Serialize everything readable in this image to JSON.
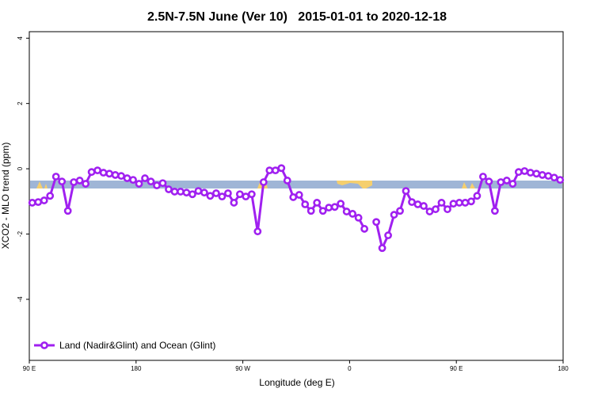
{
  "chart_data": {
    "type": "line",
    "title": "2.5N-7.5N June (Ver 10)   2015-01-01 to 2020-12-18",
    "x_label": "Longitude (deg E)",
    "y_label": "XCO2 - MLO trend (ppm)",
    "x": [
      92.5,
      97.5,
      102.5,
      107.5,
      112.5,
      117.5,
      122.5,
      127.5,
      132.5,
      137.5,
      142.5,
      147.5,
      152.5,
      157.5,
      162.5,
      167.5,
      172.5,
      177.5,
      182.5,
      187.5,
      192.5,
      197.5,
      202.5,
      207.5,
      212.5,
      217.5,
      222.5,
      227.5,
      232.5,
      237.5,
      242.5,
      247.5,
      252.5,
      257.5,
      262.5,
      267.5,
      272.5,
      277.5,
      282.5,
      287.5,
      292.5,
      297.5,
      302.5,
      307.5,
      312.5,
      317.5,
      322.5,
      327.5,
      332.5,
      337.5,
      342.5,
      347.5,
      352.5,
      357.5,
      362.5,
      367.5,
      372.5,
      377.5,
      382.5,
      387.5,
      392.5,
      397.5,
      402.5,
      407.5,
      412.5,
      417.5,
      422.5,
      427.5,
      432.5,
      437.5,
      442.5,
      447.5,
      452.5,
      457.5,
      462.5,
      467.5,
      472.5,
      477.5,
      482.5,
      487.5,
      492.5,
      497.5,
      502.5,
      507.5,
      512.5,
      517.5,
      522.5,
      527.5,
      532.5,
      537.5
    ],
    "series": [
      {
        "name": "Land (Nadir&Glint) and Ocean (Glint)",
        "color": "#a020f0",
        "values": [
          -1.04,
          -1.02,
          -0.97,
          -0.83,
          -0.24,
          -0.39,
          -1.29,
          -0.41,
          -0.36,
          -0.46,
          -0.1,
          -0.05,
          -0.12,
          -0.15,
          -0.19,
          -0.22,
          -0.29,
          -0.34,
          -0.46,
          -0.29,
          -0.39,
          -0.51,
          -0.44,
          -0.63,
          -0.7,
          -0.7,
          -0.73,
          -0.78,
          -0.68,
          -0.73,
          -0.83,
          -0.75,
          -0.85,
          -0.75,
          -1.04,
          -0.78,
          -0.85,
          -0.78,
          -1.92,
          -0.41,
          -0.05,
          -0.05,
          0.02,
          -0.36,
          -0.87,
          -0.8,
          -1.09,
          -1.29,
          -1.04,
          -1.29,
          -1.19,
          -1.17,
          -1.07,
          -1.31,
          -1.38,
          -1.5,
          -1.84,
          null,
          -1.63,
          -2.43,
          -2.04,
          -1.41,
          -1.29,
          -0.68,
          -1.02,
          -1.09,
          -1.14,
          -1.31,
          -1.24,
          -1.04,
          -1.24,
          -1.07,
          -1.04,
          -1.04,
          -1.0,
          -0.83,
          -0.24,
          -0.39,
          -1.29,
          -0.41,
          -0.36,
          -0.46,
          -0.1,
          -0.07,
          -0.12,
          -0.15,
          -0.19,
          -0.22,
          -0.27,
          -0.34
        ]
      }
    ],
    "xlim": [
      90,
      540
    ],
    "ylim": [
      -5.87,
      4.2
    ],
    "xticks": [
      {
        "value": 90,
        "label": "90 E"
      },
      180,
      {
        "value": 270,
        "label": "90 W"
      },
      {
        "value": 360,
        "label": "0"
      },
      {
        "value": 450,
        "label": "90 E"
      },
      {
        "value": 540,
        "label": "180"
      }
    ],
    "yticks": [
      -4,
      -2,
      0,
      2,
      4
    ],
    "legend": "bottom-left"
  }
}
